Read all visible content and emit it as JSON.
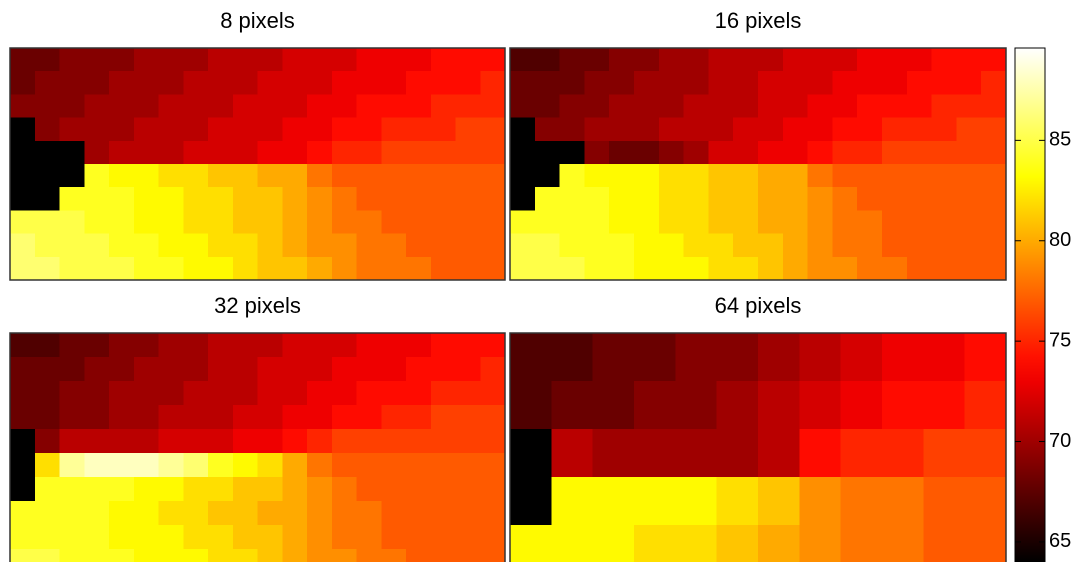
{
  "chart_data": {
    "type": "heatmap",
    "colormap": "hot",
    "clim": [
      64,
      89.6
    ],
    "cticks": [
      65,
      70,
      75,
      80,
      85
    ],
    "panels": [
      {
        "title": "8 pixels",
        "values": [
          [
            68,
            68,
            69,
            69,
            69,
            70,
            70,
            70,
            71,
            71,
            71,
            72,
            72,
            72,
            73,
            73,
            73,
            74,
            74,
            74
          ],
          [
            68,
            69,
            69,
            69,
            70,
            70,
            70,
            71,
            71,
            71,
            72,
            72,
            72,
            73,
            73,
            73,
            74,
            74,
            74,
            75
          ],
          [
            69,
            69,
            69,
            70,
            70,
            70,
            71,
            71,
            71,
            72,
            72,
            72,
            73,
            73,
            74,
            74,
            74,
            75,
            75,
            75
          ],
          [
            63,
            69,
            70,
            70,
            70,
            71,
            71,
            71,
            72,
            72,
            72,
            73,
            73,
            74,
            74,
            75,
            75,
            75,
            76,
            76
          ],
          [
            63,
            63,
            63,
            70,
            71,
            71,
            71,
            72,
            72,
            72,
            73,
            73,
            74,
            75,
            75,
            76,
            76,
            76,
            76,
            76
          ],
          [
            63,
            63,
            63,
            84,
            83,
            83,
            82,
            82,
            81,
            81,
            80,
            80,
            78,
            77,
            77,
            77,
            77,
            77,
            77,
            77
          ],
          [
            63,
            63,
            84,
            84,
            84,
            83,
            83,
            82,
            82,
            81,
            81,
            80,
            79,
            78,
            77,
            77,
            77,
            77,
            77,
            77
          ],
          [
            85,
            85,
            85,
            84,
            84,
            83,
            83,
            82,
            82,
            81,
            81,
            80,
            79,
            78,
            78,
            77,
            77,
            77,
            77,
            77
          ],
          [
            86,
            85,
            85,
            85,
            84,
            84,
            83,
            83,
            82,
            82,
            81,
            80,
            79,
            79,
            78,
            78,
            77,
            77,
            77,
            77
          ],
          [
            86,
            86,
            85,
            85,
            85,
            84,
            84,
            83,
            83,
            82,
            81,
            81,
            80,
            79,
            78,
            78,
            78,
            77,
            77,
            77
          ]
        ]
      },
      {
        "title": "16 pixels",
        "values": [
          [
            67,
            67,
            68,
            68,
            69,
            69,
            70,
            70,
            71,
            71,
            71,
            72,
            72,
            72,
            73,
            73,
            73,
            74,
            74,
            74
          ],
          [
            68,
            68,
            68,
            69,
            69,
            70,
            70,
            70,
            71,
            71,
            72,
            72,
            72,
            73,
            73,
            73,
            74,
            74,
            74,
            75
          ],
          [
            68,
            68,
            69,
            69,
            70,
            70,
            70,
            71,
            71,
            71,
            72,
            72,
            73,
            73,
            74,
            74,
            74,
            75,
            75,
            75
          ],
          [
            63,
            69,
            69,
            70,
            70,
            70,
            71,
            71,
            71,
            72,
            72,
            73,
            73,
            74,
            74,
            75,
            75,
            75,
            76,
            76
          ],
          [
            63,
            63,
            63,
            69,
            68,
            68,
            69,
            70,
            72,
            72,
            73,
            73,
            74,
            75,
            75,
            76,
            76,
            76,
            76,
            76
          ],
          [
            63,
            63,
            84,
            83,
            83,
            83,
            82,
            82,
            81,
            81,
            80,
            80,
            78,
            77,
            77,
            77,
            77,
            77,
            77,
            77
          ],
          [
            63,
            84,
            84,
            84,
            83,
            83,
            82,
            82,
            81,
            81,
            80,
            80,
            79,
            78,
            77,
            77,
            77,
            77,
            77,
            77
          ],
          [
            84,
            84,
            84,
            84,
            83,
            83,
            82,
            82,
            81,
            81,
            80,
            80,
            79,
            78,
            78,
            77,
            77,
            77,
            77,
            77
          ],
          [
            85,
            85,
            84,
            84,
            84,
            83,
            83,
            82,
            82,
            81,
            81,
            80,
            79,
            78,
            78,
            77,
            77,
            77,
            77,
            77
          ],
          [
            85,
            85,
            85,
            84,
            84,
            83,
            83,
            83,
            82,
            82,
            81,
            80,
            79,
            79,
            78,
            78,
            77,
            77,
            77,
            77
          ]
        ]
      },
      {
        "title": "32 pixels",
        "values": [
          [
            67,
            67,
            68,
            68,
            69,
            69,
            70,
            70,
            71,
            71,
            71,
            72,
            72,
            72,
            73,
            73,
            73,
            74,
            74,
            74
          ],
          [
            68,
            68,
            68,
            69,
            69,
            70,
            70,
            70,
            71,
            71,
            72,
            72,
            72,
            73,
            73,
            73,
            74,
            74,
            74,
            75
          ],
          [
            68,
            68,
            69,
            69,
            70,
            70,
            70,
            71,
            71,
            71,
            72,
            72,
            73,
            73,
            74,
            74,
            74,
            75,
            75,
            75
          ],
          [
            68,
            68,
            69,
            69,
            70,
            70,
            71,
            71,
            71,
            72,
            72,
            73,
            73,
            74,
            74,
            75,
            75,
            76,
            76,
            76
          ],
          [
            63,
            69,
            71,
            71,
            71,
            71,
            72,
            72,
            72,
            73,
            73,
            74,
            75,
            76,
            76,
            76,
            76,
            76,
            76,
            76
          ],
          [
            63,
            82,
            87,
            88,
            88,
            88,
            87,
            86,
            84,
            83,
            82,
            80,
            78,
            77,
            77,
            77,
            77,
            77,
            77,
            77
          ],
          [
            63,
            84,
            84,
            84,
            84,
            83,
            83,
            82,
            82,
            81,
            81,
            80,
            79,
            78,
            77,
            77,
            77,
            77,
            77,
            77
          ],
          [
            84,
            84,
            84,
            84,
            83,
            83,
            82,
            82,
            81,
            81,
            80,
            80,
            79,
            78,
            78,
            77,
            77,
            77,
            77,
            77
          ],
          [
            84,
            84,
            84,
            84,
            83,
            83,
            83,
            82,
            82,
            81,
            81,
            80,
            79,
            78,
            78,
            77,
            77,
            77,
            77,
            77
          ],
          [
            85,
            85,
            84,
            84,
            84,
            83,
            83,
            83,
            82,
            82,
            81,
            80,
            79,
            79,
            78,
            78,
            77,
            77,
            77,
            77
          ]
        ]
      },
      {
        "title": "64 pixels",
        "values": [
          [
            67,
            67,
            68,
            68,
            69,
            69,
            70,
            71,
            72,
            73,
            73,
            74
          ],
          [
            67,
            68,
            68,
            69,
            69,
            70,
            71,
            72,
            73,
            74,
            74,
            75
          ],
          [
            63,
            71,
            70,
            70,
            70,
            70,
            71,
            74,
            75,
            75,
            76,
            76
          ],
          [
            63,
            83,
            83,
            83,
            83,
            82,
            81,
            79,
            78,
            78,
            77,
            77
          ],
          [
            83,
            83,
            83,
            82,
            82,
            81,
            80,
            79,
            78,
            78,
            77,
            77
          ]
        ]
      }
    ]
  }
}
